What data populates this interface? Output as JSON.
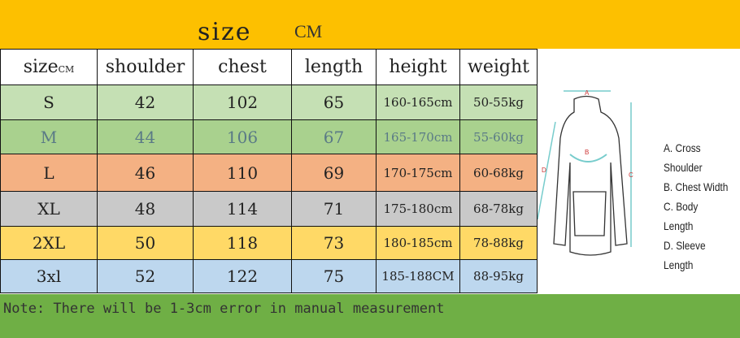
{
  "header": {
    "title": "size",
    "unit": "CM"
  },
  "table": {
    "columns": [
      "size",
      "shoulder",
      "chest",
      "length",
      "height",
      "weight"
    ],
    "size_unit": "CM",
    "rows": [
      [
        "S",
        "42",
        "102",
        "65",
        "160-165cm",
        "50-55kg"
      ],
      [
        "M",
        "44",
        "106",
        "67",
        "165-170cm",
        "55-60kg"
      ],
      [
        "L",
        "46",
        "110",
        "69",
        "170-175cm",
        "60-68kg"
      ],
      [
        "XL",
        "48",
        "114",
        "71",
        "175-180cm",
        "68-78kg"
      ],
      [
        "2XL",
        "50",
        "118",
        "73",
        "180-185cm",
        "78-88kg"
      ],
      [
        "3xl",
        "52",
        "122",
        "75",
        "185-188CM",
        "88-95kg"
      ]
    ]
  },
  "diagram": {
    "labels": [
      "A",
      "B",
      "C",
      "D"
    ],
    "legend": [
      "A. Cross Shoulder",
      "B. Chest Width",
      "C. Body Length",
      "D. Sleeve Length"
    ]
  },
  "footer": {
    "note": "Note: There will be 1-3cm error in manual measurement"
  },
  "colors": {
    "top": "#fdc000",
    "bottom": "#6faf45",
    "S": "#c5e0b4",
    "M": "#a9d18e",
    "L": "#f4b183",
    "XL": "#c9c9c9",
    "2XL": "#ffd966",
    "3xl": "#bdd7ee"
  }
}
